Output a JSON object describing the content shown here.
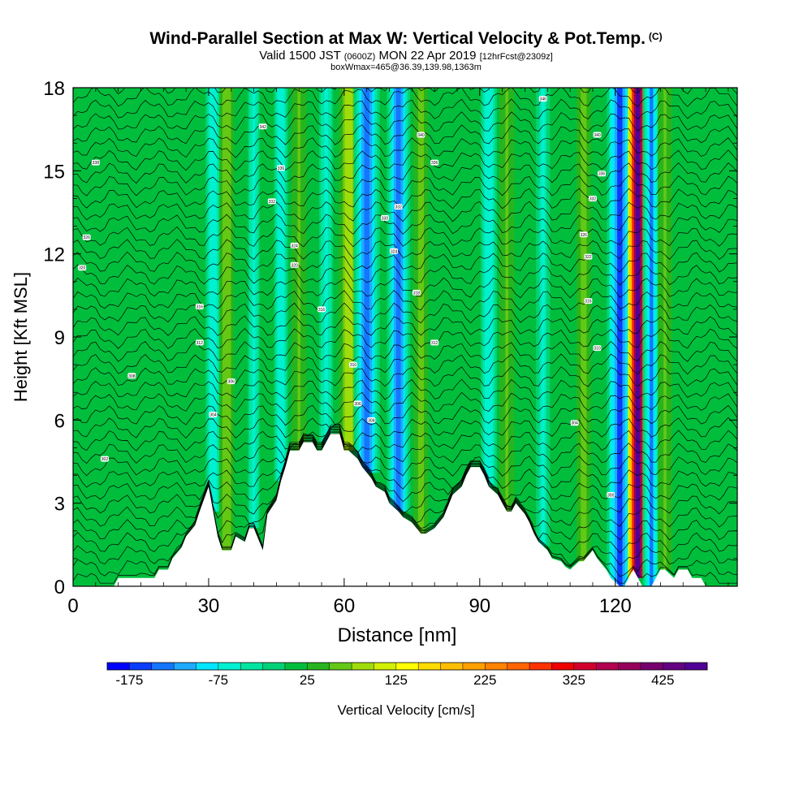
{
  "title": {
    "main": "Wind-Parallel Section at Max W: Vertical Velocity & Pot.Temp.",
    "copyright": "(C)",
    "valid_a": "Valid 1500 JST",
    "valid_b": "(0600Z)",
    "valid_c": "MON 22 Apr 2019",
    "valid_d": "[12hrFcst@2309z]",
    "box": "boxWmax=465@36.39,139.98,1363m"
  },
  "chart_data": {
    "type": "heatmap",
    "xlabel": "Distance [nm]",
    "ylabel": "Height [Kft MSL]",
    "xlim": [
      0,
      147
    ],
    "ylim": [
      0,
      18
    ],
    "x_ticks": [
      0,
      30,
      60,
      90,
      120
    ],
    "y_ticks": [
      0,
      3,
      6,
      9,
      12,
      15,
      18
    ],
    "colorbar": {
      "label": "Vertical Velocity [cm/s]",
      "tick_labels": [
        -175,
        -75,
        25,
        125,
        225,
        325,
        425
      ],
      "min": -200,
      "max": 475,
      "step": 25,
      "colors": [
        "#0000ff",
        "#0a3cff",
        "#1476ff",
        "#1eaaff",
        "#00e6ff",
        "#00f0d2",
        "#00e6a0",
        "#00d278",
        "#00be3c",
        "#28b41e",
        "#64c814",
        "#a0dc0a",
        "#d2f000",
        "#ffff00",
        "#ffdc00",
        "#ffbe00",
        "#ffa000",
        "#ff8200",
        "#ff6400",
        "#ff3200",
        "#f00000",
        "#d2002d",
        "#b40050",
        "#96005a",
        "#78006e",
        "#640082",
        "#500096"
      ]
    },
    "background_velocity": 20,
    "bands": [
      {
        "x": 31,
        "halfwidth": 1.3,
        "value": -75
      },
      {
        "x": 34,
        "halfwidth": 1.0,
        "value": 70
      },
      {
        "x": 40,
        "halfwidth": 1.0,
        "value": -60
      },
      {
        "x": 46,
        "halfwidth": 1.2,
        "value": -70
      },
      {
        "x": 50,
        "halfwidth": 1.0,
        "value": 55
      },
      {
        "x": 56,
        "halfwidth": 1.2,
        "value": -60
      },
      {
        "x": 61,
        "halfwidth": 1.4,
        "value": 90
      },
      {
        "x": 65,
        "halfwidth": 1.8,
        "value": -150
      },
      {
        "x": 72,
        "halfwidth": 1.6,
        "value": -140
      },
      {
        "x": 77,
        "halfwidth": 1.0,
        "value": 65
      },
      {
        "x": 92,
        "halfwidth": 1.4,
        "value": -70
      },
      {
        "x": 96,
        "halfwidth": 1.0,
        "value": 50
      },
      {
        "x": 104,
        "halfwidth": 1.2,
        "value": -55
      },
      {
        "x": 113,
        "halfwidth": 1.0,
        "value": 65
      },
      {
        "x": 121,
        "halfwidth": 1.8,
        "value": -160
      },
      {
        "x": 125,
        "halfwidth": 1.4,
        "value": 465
      },
      {
        "x": 128,
        "halfwidth": 1.2,
        "value": -130
      },
      {
        "x": 131,
        "halfwidth": 1.0,
        "value": 55
      }
    ],
    "terrain": {
      "x": [
        0,
        9,
        10,
        18,
        19,
        21,
        22,
        24,
        25,
        27,
        28,
        30,
        31,
        32,
        33,
        35,
        36,
        38,
        39,
        40,
        42,
        43,
        45,
        46,
        47,
        48,
        50,
        51,
        53,
        54,
        55,
        56,
        57,
        59,
        60,
        61,
        63,
        64,
        66,
        67,
        69,
        70,
        72,
        73,
        75,
        76,
        77,
        78,
        80,
        82,
        83,
        84,
        86,
        87,
        88,
        90,
        91,
        92,
        94,
        95,
        96,
        97,
        98,
        100,
        101,
        102,
        103,
        105,
        106,
        108,
        109,
        110,
        112,
        113,
        115,
        116,
        118,
        119,
        121,
        122,
        124,
        125,
        126,
        128,
        129,
        130,
        131,
        133,
        134,
        136,
        137,
        139,
        140,
        147
      ],
      "h": [
        0.0,
        0.0,
        0.3,
        0.3,
        0.6,
        0.6,
        1.0,
        1.4,
        1.8,
        2.2,
        2.7,
        3.6,
        2.7,
        1.8,
        1.3,
        1.3,
        1.8,
        1.6,
        2.1,
        2.1,
        1.3,
        2.6,
        3.1,
        3.8,
        4.3,
        4.9,
        4.9,
        5.2,
        5.2,
        4.9,
        4.9,
        5.2,
        5.5,
        5.5,
        4.9,
        4.9,
        4.6,
        4.3,
        3.9,
        3.6,
        3.4,
        3.0,
        2.7,
        2.5,
        2.3,
        2.1,
        1.9,
        1.9,
        2.1,
        2.5,
        2.9,
        3.3,
        3.6,
        4.0,
        4.3,
        4.3,
        4.0,
        3.6,
        3.3,
        3.0,
        2.7,
        2.7,
        3.0,
        2.6,
        2.3,
        1.9,
        1.6,
        1.3,
        1.0,
        0.9,
        0.7,
        0.6,
        0.9,
        0.9,
        1.3,
        1.0,
        0.6,
        0.3,
        0.0,
        0.0,
        0.6,
        0.3,
        0.0,
        0.0,
        0.3,
        0.6,
        0.6,
        0.3,
        0.6,
        0.6,
        0.3,
        0.3,
        0.0,
        0.0
      ]
    },
    "isentrope_labels": [
      {
        "x": 5,
        "y": 15.3,
        "text": "338"
      },
      {
        "x": 3,
        "y": 12.6,
        "text": "326"
      },
      {
        "x": 2,
        "y": 11.5,
        "text": "320"
      },
      {
        "x": 28,
        "y": 10.1,
        "text": "316"
      },
      {
        "x": 28,
        "y": 8.8,
        "text": "312"
      },
      {
        "x": 13,
        "y": 7.6,
        "text": "308"
      },
      {
        "x": 35,
        "y": 7.4,
        "text": "306"
      },
      {
        "x": 31,
        "y": 6.2,
        "text": "304"
      },
      {
        "x": 7,
        "y": 4.6,
        "text": "302"
      },
      {
        "x": 42,
        "y": 16.6,
        "text": "342"
      },
      {
        "x": 46,
        "y": 15.1,
        "text": "336"
      },
      {
        "x": 44,
        "y": 13.9,
        "text": "332"
      },
      {
        "x": 49,
        "y": 12.3,
        "text": "324"
      },
      {
        "x": 49,
        "y": 11.6,
        "text": "320"
      },
      {
        "x": 55,
        "y": 10.0,
        "text": "316"
      },
      {
        "x": 62,
        "y": 8.0,
        "text": "310"
      },
      {
        "x": 63,
        "y": 6.6,
        "text": "306"
      },
      {
        "x": 66,
        "y": 6.0,
        "text": "304"
      },
      {
        "x": 69,
        "y": 13.3,
        "text": "330"
      },
      {
        "x": 72,
        "y": 13.7,
        "text": "332"
      },
      {
        "x": 71,
        "y": 12.1,
        "text": "324"
      },
      {
        "x": 76,
        "y": 10.6,
        "text": "318"
      },
      {
        "x": 80,
        "y": 8.8,
        "text": "312"
      },
      {
        "x": 77,
        "y": 16.3,
        "text": "340"
      },
      {
        "x": 80,
        "y": 15.3,
        "text": "336"
      },
      {
        "x": 104,
        "y": 17.6,
        "text": "346"
      },
      {
        "x": 116,
        "y": 16.3,
        "text": "340"
      },
      {
        "x": 117,
        "y": 14.9,
        "text": "336"
      },
      {
        "x": 115,
        "y": 14.0,
        "text": "332"
      },
      {
        "x": 113,
        "y": 12.7,
        "text": "326"
      },
      {
        "x": 114,
        "y": 11.9,
        "text": "322"
      },
      {
        "x": 114,
        "y": 10.3,
        "text": "316"
      },
      {
        "x": 116,
        "y": 8.6,
        "text": "310"
      },
      {
        "x": 111,
        "y": 5.9,
        "text": "304"
      },
      {
        "x": 119,
        "y": 3.3,
        "text": "300"
      }
    ]
  }
}
